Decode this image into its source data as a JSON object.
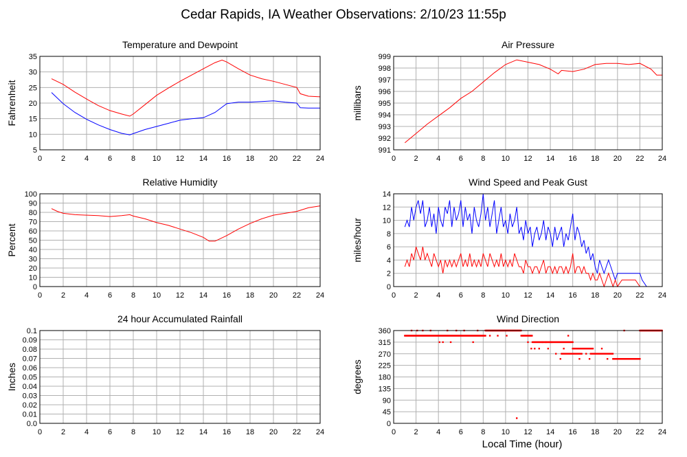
{
  "title": "Cedar Rapids, IA Weather Observations: 2/10/23 11:55p",
  "xlabel": "Local Time (hour)",
  "colors": {
    "red": "#ff0000",
    "blue": "#0000ff",
    "grid": "#b0b0b0"
  },
  "chart_data": [
    {
      "type": "line",
      "title": "Temperature and Dewpoint",
      "ylabel": "Fahrenheit",
      "xlim": [
        0,
        24
      ],
      "ylim": [
        5,
        35
      ],
      "xticks": [
        0,
        2,
        4,
        6,
        8,
        10,
        12,
        14,
        16,
        18,
        20,
        22,
        24
      ],
      "yticks": [
        5,
        10,
        15,
        20,
        25,
        30,
        35
      ],
      "grid": true,
      "series": [
        {
          "color": "#ff0000",
          "x": [
            1,
            2,
            3,
            4,
            5,
            6,
            7,
            7.7,
            8,
            9,
            10,
            11,
            12,
            13,
            14,
            15,
            15.6,
            16,
            17,
            18,
            19,
            20,
            21,
            22,
            22.3,
            23,
            24
          ],
          "y": [
            27.8,
            26,
            23.5,
            21.3,
            19.2,
            17.6,
            16.5,
            15.8,
            16.5,
            19.5,
            22.5,
            24.8,
            27,
            29,
            31,
            33,
            33.8,
            33.2,
            31,
            29,
            27.8,
            27,
            26,
            25,
            23,
            22.2,
            22
          ]
        },
        {
          "color": "#0000ff",
          "x": [
            1,
            2,
            3,
            4,
            5,
            6,
            7,
            7.7,
            8,
            9,
            10,
            11,
            12,
            13,
            14,
            15,
            16,
            17,
            18,
            19,
            20,
            21,
            22,
            22.3,
            23,
            24
          ],
          "y": [
            23.4,
            19.8,
            17,
            14.8,
            13,
            11.5,
            10.3,
            9.8,
            10.2,
            11.5,
            12.5,
            13.5,
            14.5,
            15,
            15.3,
            17,
            19.8,
            20.3,
            20.3,
            20.5,
            20.7,
            20.3,
            20,
            18.5,
            18.4,
            18.4
          ]
        }
      ]
    },
    {
      "type": "line",
      "title": "Air Pressure",
      "ylabel": "millibars",
      "xlim": [
        0,
        24
      ],
      "ylim": [
        991,
        999
      ],
      "xticks": [
        0,
        2,
        4,
        6,
        8,
        10,
        12,
        14,
        16,
        18,
        20,
        22,
        24
      ],
      "yticks": [
        991,
        992,
        993,
        994,
        995,
        996,
        997,
        998,
        999
      ],
      "grid": true,
      "series": [
        {
          "color": "#ff0000",
          "x": [
            1,
            2,
            3,
            4,
            5,
            6,
            7,
            8,
            9,
            10,
            11,
            12,
            13,
            14,
            14.7,
            15,
            16,
            17,
            18,
            19,
            20,
            21,
            22,
            23,
            23.5,
            24
          ],
          "y": [
            991.6,
            992.4,
            993.2,
            993.9,
            994.6,
            995.4,
            996,
            996.8,
            997.6,
            998.3,
            998.7,
            998.5,
            998.3,
            997.9,
            997.5,
            997.8,
            997.7,
            997.9,
            998.3,
            998.4,
            998.4,
            998.3,
            998.4,
            997.9,
            997.4,
            997.4
          ]
        }
      ]
    },
    {
      "type": "line",
      "title": "Relative Humidity",
      "ylabel": "Percent",
      "xlim": [
        0,
        24
      ],
      "ylim": [
        0,
        100
      ],
      "xticks": [
        0,
        2,
        4,
        6,
        8,
        10,
        12,
        14,
        16,
        18,
        20,
        22,
        24
      ],
      "yticks": [
        0,
        10,
        20,
        30,
        40,
        50,
        60,
        70,
        80,
        90,
        100
      ],
      "grid": true,
      "series": [
        {
          "color": "#ff0000",
          "x": [
            1,
            1.5,
            2,
            3,
            4,
            5,
            6,
            7,
            7.7,
            8,
            9,
            10,
            11,
            12,
            13,
            14,
            14.5,
            15,
            16,
            17,
            18,
            19,
            20,
            21,
            22,
            23,
            24
          ],
          "y": [
            84,
            81,
            79,
            77.5,
            77,
            76.5,
            75.5,
            76.5,
            77.5,
            76,
            73,
            69,
            66,
            62,
            58,
            53,
            49,
            49,
            55,
            62,
            68,
            73,
            77,
            79,
            81,
            85,
            87
          ]
        }
      ]
    },
    {
      "type": "line",
      "title": "Wind Speed and Peak Gust",
      "ylabel": "miles/hour",
      "xlim": [
        0,
        24
      ],
      "ylim": [
        0,
        14
      ],
      "xticks": [
        0,
        2,
        4,
        6,
        8,
        10,
        12,
        14,
        16,
        18,
        20,
        22,
        24
      ],
      "yticks": [
        0,
        2,
        4,
        6,
        8,
        10,
        12,
        14
      ],
      "grid": true,
      "series": [
        {
          "color": "#0000ff",
          "x": [
            1,
            1.2,
            1.4,
            1.6,
            1.8,
            2,
            2.2,
            2.4,
            2.6,
            2.8,
            3,
            3.2,
            3.4,
            3.6,
            3.8,
            4,
            4.2,
            4.4,
            4.6,
            4.8,
            5,
            5.2,
            5.4,
            5.6,
            5.8,
            6,
            6.2,
            6.4,
            6.6,
            6.8,
            7,
            7.2,
            7.4,
            7.6,
            7.8,
            8,
            8.2,
            8.4,
            8.6,
            8.8,
            9,
            9.2,
            9.4,
            9.6,
            9.8,
            10,
            10.2,
            10.4,
            10.6,
            10.8,
            11,
            11.2,
            11.4,
            11.6,
            11.8,
            12,
            12.2,
            12.4,
            12.6,
            12.8,
            13,
            13.2,
            13.4,
            13.6,
            13.8,
            14,
            14.2,
            14.4,
            14.6,
            14.8,
            15,
            15.2,
            15.4,
            15.6,
            15.8,
            16,
            16.2,
            16.4,
            16.6,
            16.8,
            17,
            17.2,
            17.4,
            17.6,
            17.8,
            18,
            18.2,
            18.4,
            18.6,
            18.8,
            19,
            19.2,
            19.4,
            19.6,
            19.8,
            20,
            20.4,
            20.8,
            21.2,
            21.6,
            22,
            22.2,
            22.6,
            23,
            24
          ],
          "y": [
            9,
            10,
            9,
            12,
            10,
            12,
            13,
            11,
            13,
            9,
            10,
            12,
            9,
            11,
            8,
            12,
            10,
            9,
            12,
            11,
            13,
            9,
            12,
            10,
            11,
            13,
            9,
            12,
            10,
            11,
            8,
            12,
            10,
            9,
            11,
            14,
            10,
            12,
            9,
            11,
            13,
            8,
            10,
            12,
            9,
            10,
            8,
            11,
            9,
            10,
            12,
            8,
            9,
            7,
            10,
            8,
            9,
            6,
            8,
            9,
            7,
            8,
            10,
            7,
            9,
            8,
            6,
            9,
            7,
            8,
            9,
            6,
            8,
            7,
            9,
            11,
            7,
            9,
            8,
            6,
            7,
            5,
            6,
            4,
            5,
            3,
            2,
            4,
            3,
            2,
            3,
            4,
            3,
            2,
            1,
            2,
            2,
            2,
            2,
            2,
            2,
            1,
            0,
            0,
            0
          ]
        },
        {
          "color": "#ff0000",
          "x": [
            1,
            1.2,
            1.4,
            1.6,
            1.8,
            2,
            2.2,
            2.4,
            2.6,
            2.8,
            3,
            3.2,
            3.4,
            3.6,
            3.8,
            4,
            4.2,
            4.4,
            4.6,
            4.8,
            5,
            5.2,
            5.4,
            5.6,
            5.8,
            6,
            6.2,
            6.4,
            6.6,
            6.8,
            7,
            7.2,
            7.4,
            7.6,
            7.8,
            8,
            8.2,
            8.4,
            8.6,
            8.8,
            9,
            9.2,
            9.4,
            9.6,
            9.8,
            10,
            10.2,
            10.4,
            10.6,
            10.8,
            11,
            11.2,
            11.4,
            11.6,
            11.8,
            12,
            12.2,
            12.4,
            12.6,
            12.8,
            13,
            13.2,
            13.4,
            13.6,
            13.8,
            14,
            14.2,
            14.4,
            14.6,
            14.8,
            15,
            15.2,
            15.4,
            15.6,
            15.8,
            16,
            16.2,
            16.4,
            16.6,
            16.8,
            17,
            17.2,
            17.4,
            17.6,
            17.8,
            18,
            18.2,
            18.4,
            18.6,
            18.8,
            19,
            19.2,
            19.4,
            19.6,
            19.8,
            20,
            20.4,
            20.8,
            21.2,
            21.6,
            22,
            22.2,
            22.6,
            23,
            24
          ],
          "y": [
            3,
            4,
            3,
            5,
            4,
            6,
            5,
            4,
            6,
            4,
            5,
            4,
            3,
            5,
            4,
            3,
            4,
            2,
            4,
            3,
            4,
            3,
            4,
            3,
            4,
            5,
            3,
            4,
            3,
            5,
            3,
            4,
            3,
            4,
            3,
            5,
            4,
            3,
            5,
            4,
            3,
            4,
            3,
            5,
            3,
            4,
            3,
            4,
            3,
            5,
            4,
            3,
            3,
            2,
            4,
            3,
            3,
            2,
            3,
            3,
            2,
            3,
            4,
            2,
            3,
            3,
            2,
            3,
            2,
            3,
            3,
            2,
            3,
            2,
            3,
            5,
            2,
            3,
            3,
            2,
            3,
            2,
            2,
            1,
            2,
            1,
            1,
            2,
            1,
            0,
            1,
            2,
            1,
            0,
            1,
            0,
            1,
            1,
            1,
            1,
            0,
            0,
            0,
            0,
            0
          ]
        }
      ]
    },
    {
      "type": "line",
      "title": "24 hour Accumulated Rainfall",
      "ylabel": "Inches",
      "xlim": [
        0,
        24
      ],
      "ylim": [
        0,
        0.1
      ],
      "xticks": [
        0,
        2,
        4,
        6,
        8,
        10,
        12,
        14,
        16,
        18,
        20,
        22,
        24
      ],
      "yticks": [
        0.0,
        0.01,
        0.02,
        0.03,
        0.04,
        0.05,
        0.06,
        0.07,
        0.08,
        0.09,
        0.1
      ],
      "ytick_labels": [
        "0.0",
        "0.01",
        "0.02",
        "0.03",
        "0.04",
        "0.05",
        "0.06",
        "0.07",
        "0.08",
        "0.09",
        "0.1"
      ],
      "grid": true,
      "series": [
        {
          "color": "#ff0000",
          "x": [
            1,
            24
          ],
          "y": [
            0,
            0
          ]
        }
      ]
    },
    {
      "type": "scatter",
      "title": "Wind Direction",
      "ylabel": "degrees",
      "xlim": [
        0,
        24
      ],
      "ylim": [
        0,
        360
      ],
      "xticks": [
        0,
        2,
        4,
        6,
        8,
        10,
        12,
        14,
        16,
        18,
        20,
        22,
        24
      ],
      "yticks": [
        0,
        45,
        90,
        135,
        180,
        225,
        270,
        315,
        360
      ],
      "grid": true,
      "series": [
        {
          "color": "#ff0000",
          "segments": [
            {
              "x0": 1.0,
              "x1": 8.2,
              "y": 340
            },
            {
              "x0": 8.2,
              "x1": 11.4,
              "y": 360
            },
            {
              "x0": 11.4,
              "x1": 12.4,
              "y": 340
            },
            {
              "x0": 12.4,
              "x1": 13.6,
              "y": 315
            },
            {
              "x0": 13.6,
              "x1": 16.0,
              "y": 315
            },
            {
              "x0": 15.0,
              "x1": 16.8,
              "y": 270
            },
            {
              "x0": 16.0,
              "x1": 17.8,
              "y": 290
            },
            {
              "x0": 17.6,
              "x1": 19.6,
              "y": 270
            },
            {
              "x0": 19.6,
              "x1": 22.0,
              "y": 250
            },
            {
              "x0": 22.0,
              "x1": 24.0,
              "y": 360
            }
          ],
          "points": [
            [
              1.6,
              360
            ],
            [
              2.1,
              360
            ],
            [
              2.6,
              360
            ],
            [
              3.3,
              360
            ],
            [
              4.1,
              315
            ],
            [
              4.4,
              315
            ],
            [
              4.8,
              360
            ],
            [
              5.1,
              315
            ],
            [
              5.6,
              360
            ],
            [
              6.3,
              360
            ],
            [
              7.1,
              315
            ],
            [
              7.5,
              360
            ],
            [
              8.6,
              340
            ],
            [
              9.3,
              340
            ],
            [
              10.1,
              340
            ],
            [
              11.0,
              20
            ],
            [
              12.0,
              315
            ],
            [
              12.3,
              290
            ],
            [
              12.6,
              290
            ],
            [
              13.0,
              290
            ],
            [
              13.3,
              315
            ],
            [
              13.8,
              290
            ],
            [
              14.1,
              315
            ],
            [
              14.5,
              270
            ],
            [
              14.9,
              250
            ],
            [
              15.2,
              290
            ],
            [
              15.6,
              340
            ],
            [
              16.1,
              270
            ],
            [
              16.6,
              250
            ],
            [
              17.2,
              270
            ],
            [
              17.5,
              250
            ],
            [
              18.2,
              270
            ],
            [
              18.6,
              290
            ],
            [
              19.1,
              250
            ],
            [
              20.6,
              360
            ],
            [
              21.2,
              250
            ]
          ]
        }
      ]
    }
  ]
}
